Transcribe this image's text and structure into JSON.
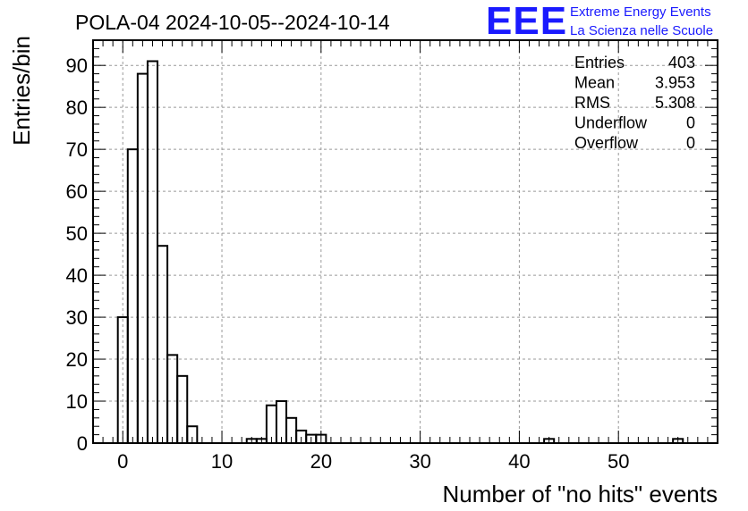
{
  "chart_data": {
    "type": "bar",
    "title": "POLA-04 2024-10-05--2024-10-14",
    "xlabel": "Number of \"no hits\" events",
    "ylabel": "Entries/bin",
    "xlim": [
      -3,
      60
    ],
    "ylim": [
      0,
      96
    ],
    "grid": true,
    "bin_width": 1,
    "xticks": [
      0,
      10,
      20,
      30,
      40,
      50
    ],
    "yticks": [
      0,
      10,
      20,
      30,
      40,
      50,
      60,
      70,
      80,
      90
    ],
    "bins": [
      {
        "x": 0,
        "value": 30
      },
      {
        "x": 1,
        "value": 70
      },
      {
        "x": 2,
        "value": 88
      },
      {
        "x": 3,
        "value": 91
      },
      {
        "x": 4,
        "value": 47
      },
      {
        "x": 5,
        "value": 21
      },
      {
        "x": 6,
        "value": 16
      },
      {
        "x": 7,
        "value": 4
      },
      {
        "x": 13,
        "value": 1
      },
      {
        "x": 14,
        "value": 1
      },
      {
        "x": 15,
        "value": 9
      },
      {
        "x": 16,
        "value": 10
      },
      {
        "x": 17,
        "value": 6
      },
      {
        "x": 18,
        "value": 3
      },
      {
        "x": 19,
        "value": 2
      },
      {
        "x": 20,
        "value": 2
      },
      {
        "x": 43,
        "value": 1
      },
      {
        "x": 56,
        "value": 1
      }
    ]
  },
  "stats": [
    {
      "label": "Entries",
      "value": "403"
    },
    {
      "label": "Mean",
      "value": "3.953"
    },
    {
      "label": "RMS",
      "value": "5.308"
    },
    {
      "label": "Underflow",
      "value": "0"
    },
    {
      "label": "Overflow",
      "value": "0"
    }
  ],
  "logo": {
    "mark": "EEE",
    "line1": "Extreme Energy Events",
    "line2": "La Scienza nelle Scuole",
    "color": "#1a1aff"
  }
}
